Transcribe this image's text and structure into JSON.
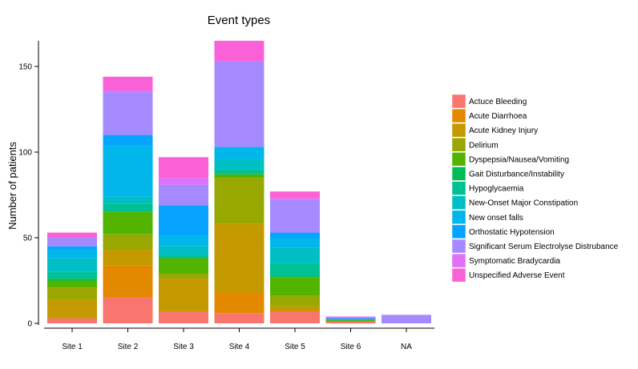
{
  "chart_data": {
    "type": "bar",
    "stacked": true,
    "title": "Event types",
    "xlabel": "",
    "ylabel": "Number of patients",
    "ylim": [
      0,
      165
    ],
    "yticks": [
      0,
      50,
      100,
      150
    ],
    "grid": false,
    "legend_position": "right",
    "categories": [
      "Site 1",
      "Site 2",
      "Site 3",
      "Site 4",
      "Site 5",
      "Site 6",
      "NA"
    ],
    "series": [
      {
        "name": "Actuce Bleeding",
        "color": "#F8766D",
        "values": [
          3,
          15,
          7,
          6,
          7,
          1,
          0
        ]
      },
      {
        "name": "Acute Diarrhoea",
        "color": "#E38900",
        "values": [
          0,
          19,
          0,
          12,
          0,
          0,
          0
        ]
      },
      {
        "name": "Acute Kidney Injury",
        "color": "#C49A00",
        "values": [
          11,
          9,
          19,
          40,
          3,
          0,
          0
        ]
      },
      {
        "name": "Delirium",
        "color": "#99A800",
        "values": [
          7,
          9,
          3,
          27,
          6,
          0,
          0
        ]
      },
      {
        "name": "Dyspepsia/Nausea/Vomiting",
        "color": "#53B400",
        "values": [
          4,
          13,
          9,
          2,
          11,
          1,
          0
        ]
      },
      {
        "name": "Gait Disturbance/Instability",
        "color": "#00BC56",
        "values": [
          1,
          0,
          1,
          0,
          1,
          0,
          0
        ]
      },
      {
        "name": "Hypoglycaemia",
        "color": "#00C094",
        "values": [
          4,
          5,
          0,
          3,
          7,
          0,
          0
        ]
      },
      {
        "name": "New-Onset Major Constipation",
        "color": "#00BFC4",
        "values": [
          8,
          4,
          6,
          6,
          9,
          0,
          0
        ]
      },
      {
        "name": "New onset falls",
        "color": "#00B6EB",
        "values": [
          5,
          30,
          6,
          7,
          6,
          0,
          0
        ]
      },
      {
        "name": "Orthostatic Hypotension",
        "color": "#06A4FF",
        "values": [
          2,
          6,
          18,
          0,
          3,
          1,
          0
        ]
      },
      {
        "name": "Significant Serum Electrolyse Distrubance",
        "color": "#A58AFF",
        "values": [
          5,
          25,
          12,
          50,
          19,
          0,
          5
        ]
      },
      {
        "name": "Symptomatic Bradycardia",
        "color": "#DF70F8",
        "values": [
          0,
          1,
          4,
          0,
          1,
          1,
          0
        ]
      },
      {
        "name": "Unspecified Adverse Event",
        "color": "#FB61D7",
        "values": [
          3,
          8,
          12,
          12,
          4,
          0,
          0
        ]
      }
    ]
  }
}
